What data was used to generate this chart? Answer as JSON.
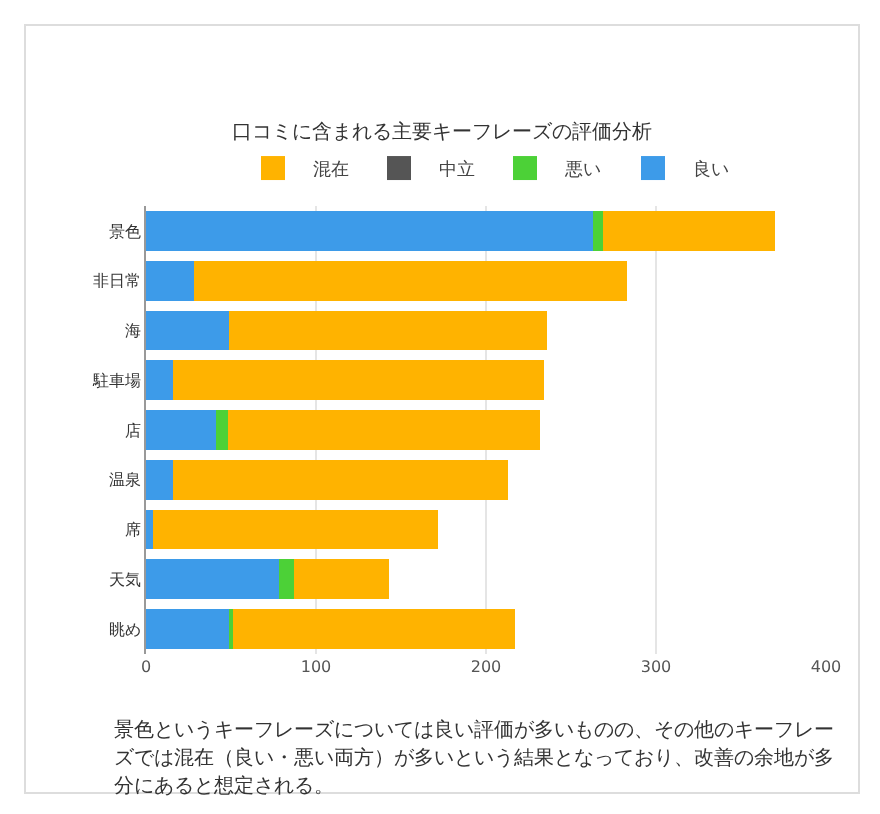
{
  "chart_data": {
    "type": "bar",
    "orientation": "horizontal",
    "stacked": true,
    "title": "口コミに含まれる主要キーフレーズの評価分析",
    "categories": [
      "景色",
      "非日常",
      "海",
      "駐車場",
      "店",
      "温泉",
      "席",
      "天気",
      "眺め"
    ],
    "series": [
      {
        "name": "良い",
        "color": "#3d9be9",
        "values": [
          263,
          28,
          49,
          16,
          41,
          16,
          4,
          78,
          49
        ]
      },
      {
        "name": "悪い",
        "color": "#4cd137",
        "values": [
          6,
          0,
          0,
          0,
          7,
          0,
          0,
          9,
          2
        ]
      },
      {
        "name": "中立",
        "color": "#555555",
        "values": [
          0,
          0,
          0,
          0,
          0,
          0,
          0,
          0,
          0
        ]
      },
      {
        "name": "混在",
        "color": "#ffb300",
        "values": [
          101,
          255,
          187,
          218,
          184,
          197,
          168,
          56,
          166
        ]
      }
    ],
    "xlim": [
      0,
      400
    ],
    "xticks": [
      0,
      100,
      200,
      300,
      400
    ],
    "grid": "x",
    "legend": "top",
    "annotations": [
      "景色というキーフレーズについては良い評価が多いものの、その他のキーフレーズでは混在（良い・悪い両方）が多いという結果となっており、改善の余地が多分にあると想定される。"
    ]
  }
}
